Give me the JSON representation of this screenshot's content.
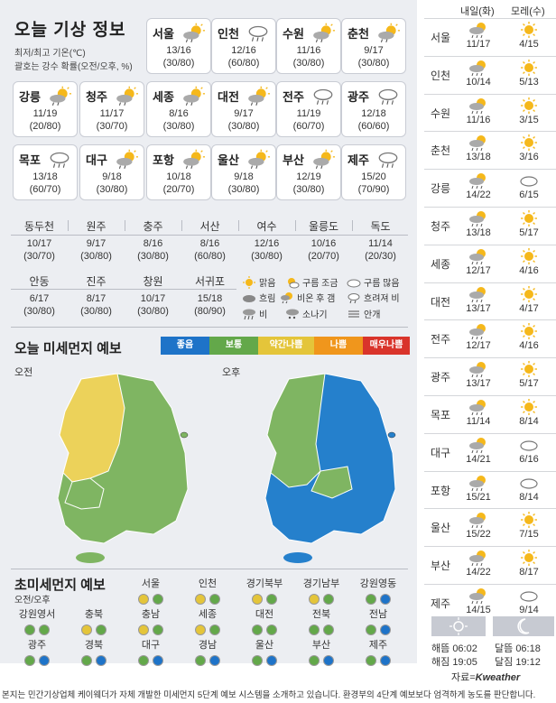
{
  "header": {
    "title": "오늘 기상 정보",
    "sub1": "최저/최고 기온(℃)",
    "sub2": "괄호는 강수 확률(오전/오후, %)"
  },
  "cards": [
    {
      "name": "서울",
      "icon": "sun-cloud-icon",
      "temp": "13/16",
      "rain": "(30/80)"
    },
    {
      "name": "인천",
      "icon": "cloud-rain-icon",
      "temp": "12/16",
      "rain": "(60/80)"
    },
    {
      "name": "수원",
      "icon": "sun-cloud-icon",
      "temp": "11/16",
      "rain": "(30/80)"
    },
    {
      "name": "춘천",
      "icon": "sun-cloud-icon",
      "temp": "9/17",
      "rain": "(30/80)"
    },
    {
      "name": "강릉",
      "icon": "sun-cloud-icon",
      "temp": "11/19",
      "rain": "(20/80)"
    },
    {
      "name": "청주",
      "icon": "sun-cloud-icon",
      "temp": "11/17",
      "rain": "(30/70)"
    },
    {
      "name": "세종",
      "icon": "sun-cloud-icon",
      "temp": "8/16",
      "rain": "(30/80)"
    },
    {
      "name": "대전",
      "icon": "sun-cloud-icon",
      "temp": "9/17",
      "rain": "(30/80)"
    },
    {
      "name": "전주",
      "icon": "cloud-rain-icon",
      "temp": "11/19",
      "rain": "(60/70)"
    },
    {
      "name": "광주",
      "icon": "cloud-rain-icon",
      "temp": "12/18",
      "rain": "(60/60)"
    },
    {
      "name": "목포",
      "icon": "cloud-rain-icon",
      "temp": "13/18",
      "rain": "(60/70)"
    },
    {
      "name": "대구",
      "icon": "sun-cloud-icon",
      "temp": "9/18",
      "rain": "(30/80)"
    },
    {
      "name": "포항",
      "icon": "sun-cloud-icon",
      "temp": "10/18",
      "rain": "(20/70)"
    },
    {
      "name": "울산",
      "icon": "sun-cloud-icon",
      "temp": "9/18",
      "rain": "(30/80)"
    },
    {
      "name": "부산",
      "icon": "sun-cloud-icon",
      "temp": "12/19",
      "rain": "(30/80)"
    },
    {
      "name": "제주",
      "icon": "cloud-rain-icon",
      "temp": "15/20",
      "rain": "(70/90)"
    }
  ],
  "row1": [
    {
      "name": "동두천",
      "temp": "10/17",
      "rain": "(30/70)"
    },
    {
      "name": "원주",
      "temp": "9/17",
      "rain": "(30/80)"
    },
    {
      "name": "충주",
      "temp": "8/16",
      "rain": "(30/80)"
    },
    {
      "name": "서산",
      "temp": "8/16",
      "rain": "(60/80)"
    },
    {
      "name": "여수",
      "temp": "12/16",
      "rain": "(30/80)"
    },
    {
      "name": "울릉도",
      "temp": "10/16",
      "rain": "(20/70)"
    },
    {
      "name": "독도",
      "temp": "11/14",
      "rain": "(20/30)"
    }
  ],
  "row2": [
    {
      "name": "안동",
      "temp": "6/17",
      "rain": "(30/80)"
    },
    {
      "name": "진주",
      "temp": "8/17",
      "rain": "(30/80)"
    },
    {
      "name": "창원",
      "temp": "10/17",
      "rain": "(30/80)"
    },
    {
      "name": "서귀포",
      "temp": "15/18",
      "rain": "(80/90)"
    }
  ],
  "legend": {
    "sunny": "맑음",
    "partly": "구름 조금",
    "mostly": "구름 많음",
    "cloudy": "흐림",
    "after_rain": "비온 후 갬",
    "later_rain": "흐려져 비",
    "rain": "비",
    "shower": "소나기",
    "fog": "안개"
  },
  "dust": {
    "title": "오늘 미세먼지 예보",
    "am": "오전",
    "pm": "오후",
    "levels": [
      {
        "label": "좋음",
        "color": "#1e73c8"
      },
      {
        "label": "보통",
        "color": "#63a84a"
      },
      {
        "label": "약간나쁨",
        "color": "#e4c53a"
      },
      {
        "label": "나쁨",
        "color": "#f0961c"
      },
      {
        "label": "매우나쁨",
        "color": "#d9342b"
      }
    ]
  },
  "ultra": {
    "title": "초미세먼지 예보",
    "sub": "오전/오후",
    "cells": [
      {
        "name": "서울",
        "am": "#e4c53a",
        "pm": "#63a84a"
      },
      {
        "name": "인천",
        "am": "#e4c53a",
        "pm": "#63a84a"
      },
      {
        "name": "경기북부",
        "am": "#e4c53a",
        "pm": "#63a84a"
      },
      {
        "name": "경기남부",
        "am": "#e4c53a",
        "pm": "#63a84a"
      },
      {
        "name": "강원영동",
        "am": "#63a84a",
        "pm": "#1e73c8"
      },
      {
        "name": "강원영서",
        "am": "#63a84a",
        "pm": "#63a84a"
      },
      {
        "name": "충북",
        "am": "#e4c53a",
        "pm": "#63a84a"
      },
      {
        "name": "충남",
        "am": "#e4c53a",
        "pm": "#63a84a"
      },
      {
        "name": "세종",
        "am": "#e4c53a",
        "pm": "#63a84a"
      },
      {
        "name": "대전",
        "am": "#63a84a",
        "pm": "#63a84a"
      },
      {
        "name": "전북",
        "am": "#63a84a",
        "pm": "#63a84a"
      },
      {
        "name": "전남",
        "am": "#63a84a",
        "pm": "#1e73c8"
      },
      {
        "name": "광주",
        "am": "#63a84a",
        "pm": "#1e73c8"
      },
      {
        "name": "경북",
        "am": "#63a84a",
        "pm": "#1e73c8"
      },
      {
        "name": "대구",
        "am": "#63a84a",
        "pm": "#1e73c8"
      },
      {
        "name": "경남",
        "am": "#63a84a",
        "pm": "#1e73c8"
      },
      {
        "name": "울산",
        "am": "#63a84a",
        "pm": "#1e73c8"
      },
      {
        "name": "부산",
        "am": "#63a84a",
        "pm": "#1e73c8"
      },
      {
        "name": "제주",
        "am": "#63a84a",
        "pm": "#1e73c8"
      }
    ]
  },
  "forecast": {
    "day1": "내일(화)",
    "day2": "모레(수)",
    "rows": [
      {
        "name": "서울",
        "t1": "11/17",
        "i1": "sun-cloud-rain-icon",
        "t2": "4/15",
        "i2": "sun-icon"
      },
      {
        "name": "인천",
        "t1": "10/14",
        "i1": "sun-cloud-rain-icon",
        "t2": "5/13",
        "i2": "sun-icon"
      },
      {
        "name": "수원",
        "t1": "11/16",
        "i1": "sun-cloud-rain-icon",
        "t2": "3/15",
        "i2": "sun-icon"
      },
      {
        "name": "춘천",
        "t1": "13/18",
        "i1": "sun-cloud-rain-icon",
        "t2": "3/16",
        "i2": "sun-icon"
      },
      {
        "name": "강릉",
        "t1": "14/22",
        "i1": "sun-cloud-rain-icon",
        "t2": "6/15",
        "i2": "cloud-icon"
      },
      {
        "name": "청주",
        "t1": "13/18",
        "i1": "sun-cloud-rain-icon",
        "t2": "5/17",
        "i2": "sun-icon"
      },
      {
        "name": "세종",
        "t1": "12/17",
        "i1": "sun-cloud-rain-icon",
        "t2": "4/16",
        "i2": "sun-icon"
      },
      {
        "name": "대전",
        "t1": "13/17",
        "i1": "sun-cloud-rain-icon",
        "t2": "4/17",
        "i2": "sun-icon"
      },
      {
        "name": "전주",
        "t1": "12/17",
        "i1": "sun-cloud-rain-icon",
        "t2": "4/16",
        "i2": "sun-icon"
      },
      {
        "name": "광주",
        "t1": "13/17",
        "i1": "sun-cloud-rain-icon",
        "t2": "5/17",
        "i2": "sun-icon"
      },
      {
        "name": "목포",
        "t1": "11/14",
        "i1": "sun-cloud-rain-icon",
        "t2": "8/14",
        "i2": "sun-icon"
      },
      {
        "name": "대구",
        "t1": "14/21",
        "i1": "sun-cloud-rain-icon",
        "t2": "6/16",
        "i2": "cloud-icon"
      },
      {
        "name": "포항",
        "t1": "15/21",
        "i1": "sun-cloud-rain-icon",
        "t2": "8/14",
        "i2": "cloud-icon"
      },
      {
        "name": "울산",
        "t1": "15/22",
        "i1": "sun-cloud-rain-icon",
        "t2": "7/15",
        "i2": "sun-icon"
      },
      {
        "name": "부산",
        "t1": "14/22",
        "i1": "sun-cloud-rain-icon",
        "t2": "8/17",
        "i2": "sun-icon"
      },
      {
        "name": "제주",
        "t1": "14/15",
        "i1": "sun-cloud-rain-icon",
        "t2": "9/14",
        "i2": "cloud-icon"
      }
    ]
  },
  "sun": {
    "rise_label": "해뜸",
    "rise": "06:02",
    "set_label": "해짐",
    "set": "19:05",
    "moonrise_label": "달뜸",
    "moonrise": "06:18",
    "moonset_label": "달짐",
    "moonset": "19:12"
  },
  "source": {
    "prefix": "자료=",
    "name": "Kweather"
  },
  "footer": "본지는 민간기상업체 케이웨더가 자체 개발한 미세먼지 5단계 예보 시스템을 소개하고 있습니다. 환경부의 4단계 예보보다 엄격하게 농도를 판단합니다."
}
